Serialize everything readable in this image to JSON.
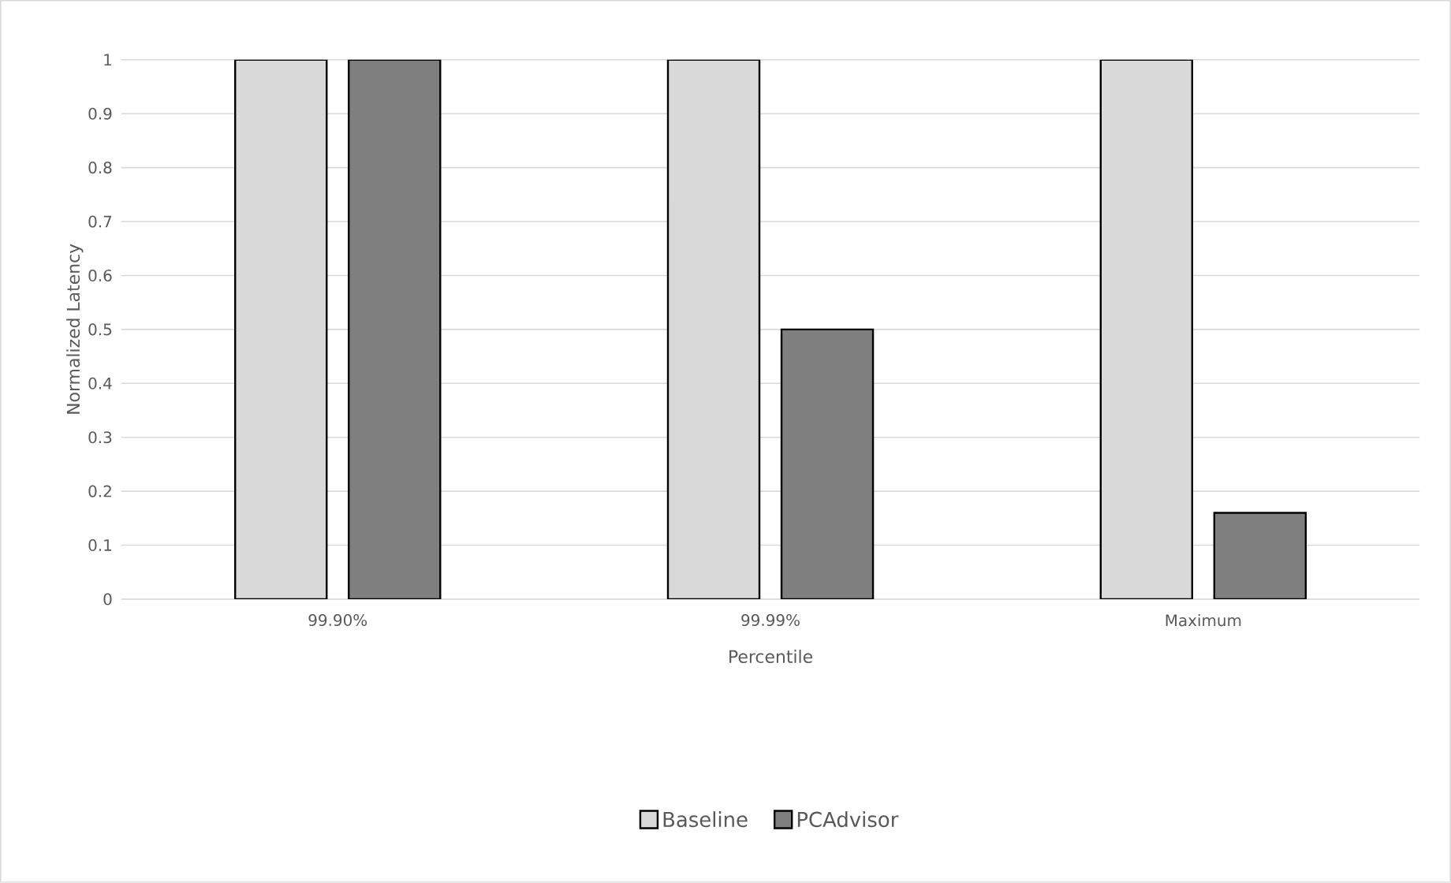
{
  "chart_data": {
    "type": "bar",
    "xlabel": "Percentile",
    "ylabel": "Normalized Latency",
    "categories": [
      "99.90%",
      "99.99%",
      "Maximum"
    ],
    "series": [
      {
        "name": "Baseline",
        "color": "#d9d9d9",
        "values": [
          1,
          1,
          1
        ]
      },
      {
        "name": "PCAdvisor",
        "color": "#7f7f7f",
        "values": [
          1,
          0.5,
          0.16
        ]
      }
    ],
    "ylim": [
      0,
      1
    ],
    "yticks": [
      0,
      0.1,
      0.2,
      0.3,
      0.4,
      0.5,
      0.6,
      0.7,
      0.8,
      0.9,
      1
    ],
    "grid": "y",
    "legend": "bottom"
  }
}
